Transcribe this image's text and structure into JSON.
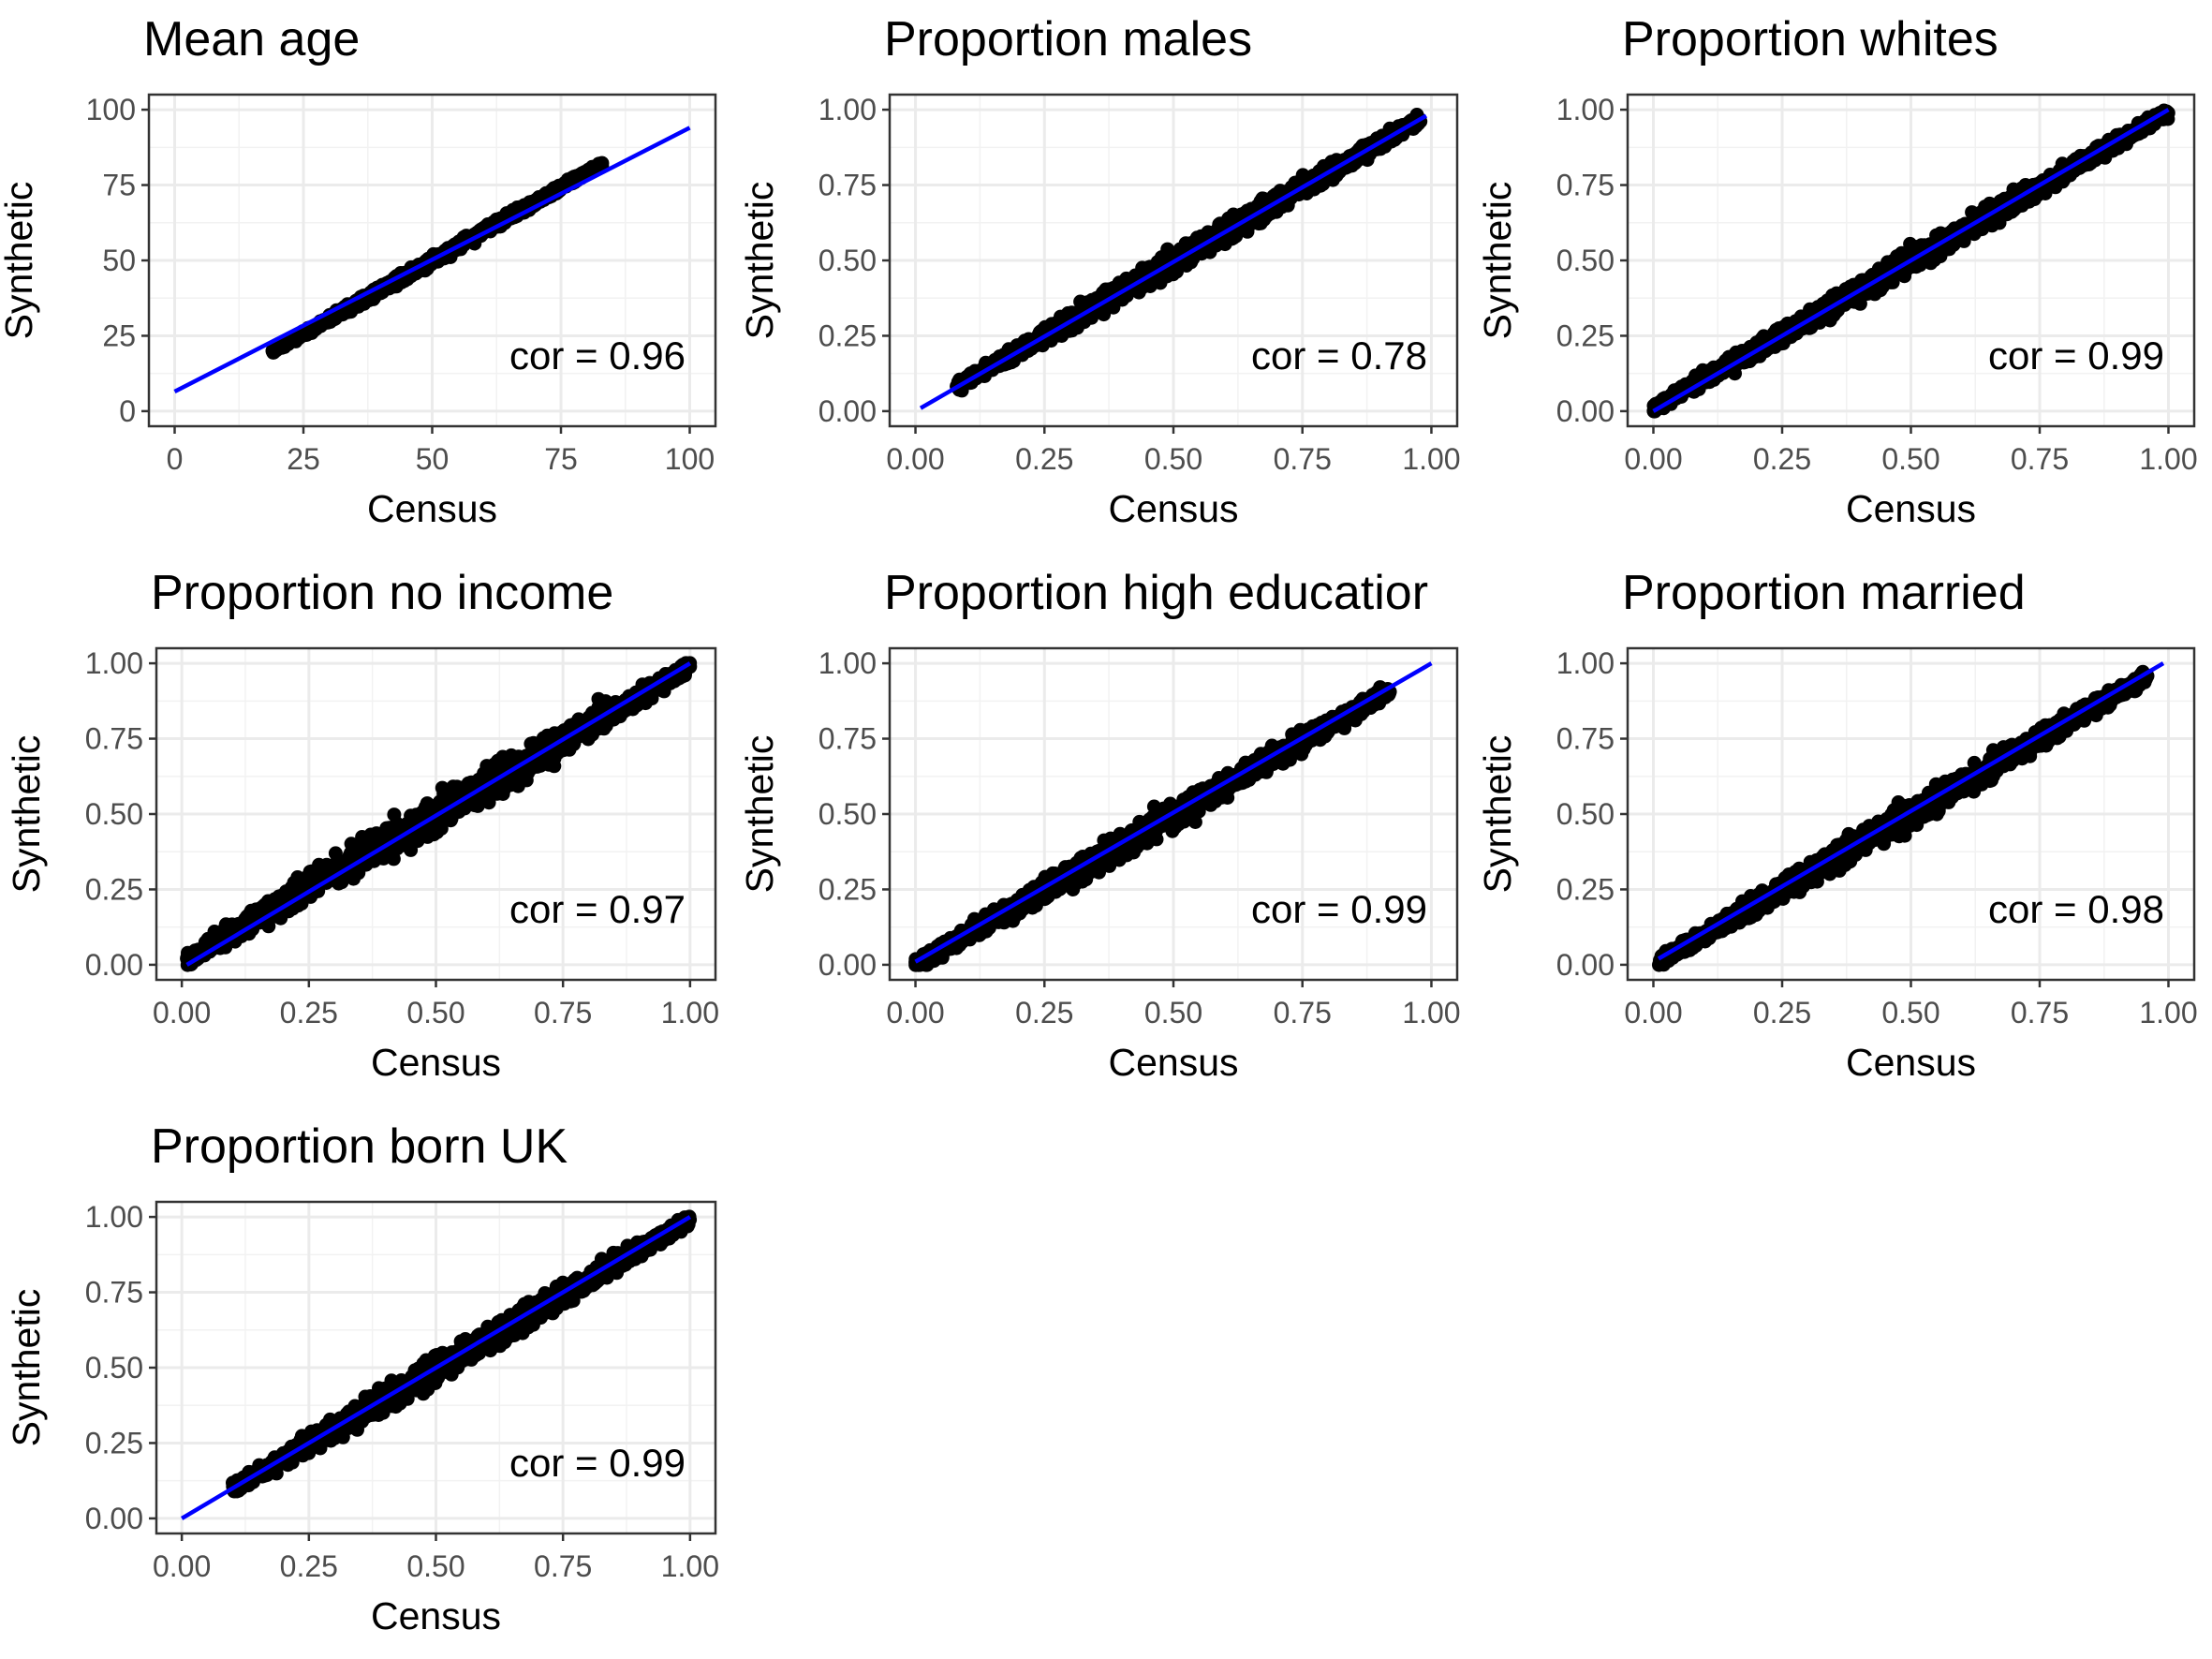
{
  "chart_data": [
    {
      "type": "scatter",
      "title": "Mean age",
      "xlabel": "Census",
      "ylabel": "Synthetic",
      "xlim": [
        -5,
        105
      ],
      "ylim": [
        -5,
        105
      ],
      "xticks": [
        0,
        25,
        50,
        75,
        100
      ],
      "yticks": [
        0,
        25,
        50,
        75,
        100
      ],
      "xtick_labels": [
        "0",
        "25",
        "50",
        "75",
        "100"
      ],
      "ytick_labels": [
        "0",
        "25",
        "50",
        "75",
        "100"
      ],
      "cloud": {
        "x_range": [
          19,
          83
        ],
        "slope": 0.97,
        "intercept": 1.5,
        "spread": 2.6
      },
      "fit_line": {
        "x": [
          0,
          100
        ],
        "y": [
          6.5,
          94
        ]
      },
      "annotation": "cor = 0.96",
      "point_color": "#000000",
      "line_color": "#0000ff",
      "grid": true
    },
    {
      "type": "scatter",
      "title": "Proportion males",
      "xlabel": "Census",
      "ylabel": "Synthetic",
      "xlim": [
        -0.05,
        1.05
      ],
      "ylim": [
        -0.05,
        1.05
      ],
      "xticks": [
        0,
        0.25,
        0.5,
        0.75,
        1
      ],
      "yticks": [
        0,
        0.25,
        0.5,
        0.75,
        1
      ],
      "xtick_labels": [
        "0.00",
        "0.25",
        "0.50",
        "0.75",
        "1.00"
      ],
      "ytick_labels": [
        "0.00",
        "0.25",
        "0.50",
        "0.75",
        "1.00"
      ],
      "cloud": {
        "x_range": [
          0.08,
          0.98
        ],
        "slope": 0.985,
        "intercept": 0.005,
        "spread": 0.06
      },
      "fit_line": {
        "x": [
          0.01,
          0.99
        ],
        "y": [
          0.01,
          0.98
        ]
      },
      "annotation": "cor = 0.78",
      "point_color": "#000000",
      "line_color": "#0000ff",
      "grid": true
    },
    {
      "type": "scatter",
      "title": "Proportion whites",
      "xlabel": "Census",
      "ylabel": "Synthetic",
      "xlim": [
        -0.05,
        1.05
      ],
      "ylim": [
        -0.05,
        1.05
      ],
      "xticks": [
        0,
        0.25,
        0.5,
        0.75,
        1
      ],
      "yticks": [
        0,
        0.25,
        0.5,
        0.75,
        1
      ],
      "xtick_labels": [
        "0.00",
        "0.25",
        "0.50",
        "0.75",
        "1.00"
      ],
      "ytick_labels": [
        "0.00",
        "0.25",
        "0.50",
        "0.75",
        "1.00"
      ],
      "cloud": {
        "x_range": [
          0.0,
          1.0
        ],
        "slope": 0.98,
        "intercept": 0.01,
        "spread": 0.06
      },
      "fit_line": {
        "x": [
          0.0,
          1.0
        ],
        "y": [
          0.0,
          1.0
        ]
      },
      "annotation": "cor = 0.99",
      "point_color": "#000000",
      "line_color": "#0000ff",
      "grid": true
    },
    {
      "type": "scatter",
      "title": "Proportion no income",
      "xlabel": "Census",
      "ylabel": "Synthetic",
      "xlim": [
        -0.05,
        1.05
      ],
      "ylim": [
        -0.05,
        1.05
      ],
      "xticks": [
        0,
        0.25,
        0.5,
        0.75,
        1
      ],
      "yticks": [
        0,
        0.25,
        0.5,
        0.75,
        1
      ],
      "xtick_labels": [
        "0.00",
        "0.25",
        "0.50",
        "0.75",
        "1.00"
      ],
      "ytick_labels": [
        "0.00",
        "0.25",
        "0.50",
        "0.75",
        "1.00"
      ],
      "cloud": {
        "x_range": [
          0.01,
          1.0
        ],
        "slope": 0.98,
        "intercept": 0.01,
        "spread": 0.09
      },
      "fit_line": {
        "x": [
          0.01,
          1.0
        ],
        "y": [
          0.0,
          1.0
        ]
      },
      "annotation": "cor = 0.97",
      "point_color": "#000000",
      "line_color": "#0000ff",
      "grid": true
    },
    {
      "type": "scatter",
      "title": "Proportion high educatior",
      "xlabel": "Census",
      "ylabel": "Synthetic",
      "xlim": [
        -0.05,
        1.05
      ],
      "ylim": [
        -0.05,
        1.05
      ],
      "xticks": [
        0,
        0.25,
        0.5,
        0.75,
        1
      ],
      "yticks": [
        0,
        0.25,
        0.5,
        0.75,
        1
      ],
      "xtick_labels": [
        "0.00",
        "0.25",
        "0.50",
        "0.75",
        "1.00"
      ],
      "ytick_labels": [
        "0.00",
        "0.25",
        "0.50",
        "0.75",
        "1.00"
      ],
      "cloud": {
        "x_range": [
          0.0,
          0.92
        ],
        "slope": 0.99,
        "intercept": 0.0,
        "spread": 0.07
      },
      "fit_line": {
        "x": [
          0.0,
          1.0
        ],
        "y": [
          0.01,
          1.0
        ]
      },
      "annotation": "cor = 0.99",
      "point_color": "#000000",
      "line_color": "#0000ff",
      "grid": true
    },
    {
      "type": "scatter",
      "title": "Proportion married",
      "xlabel": "Census",
      "ylabel": "Synthetic",
      "xlim": [
        -0.05,
        1.05
      ],
      "ylim": [
        -0.05,
        1.05
      ],
      "xticks": [
        0,
        0.25,
        0.5,
        0.75,
        1
      ],
      "yticks": [
        0,
        0.25,
        0.5,
        0.75,
        1
      ],
      "xtick_labels": [
        "0.00",
        "0.25",
        "0.50",
        "0.75",
        "1.00"
      ],
      "ytick_labels": [
        "0.00",
        "0.25",
        "0.50",
        "0.75",
        "1.00"
      ],
      "cloud": {
        "x_range": [
          0.01,
          0.96
        ],
        "slope": 1.0,
        "intercept": 0.0,
        "spread": 0.07
      },
      "fit_line": {
        "x": [
          0.01,
          0.99
        ],
        "y": [
          0.02,
          1.0
        ]
      },
      "annotation": "cor = 0.98",
      "point_color": "#000000",
      "line_color": "#0000ff",
      "grid": true
    },
    {
      "type": "scatter",
      "title": "Proportion born UK",
      "xlabel": "Census",
      "ylabel": "Synthetic",
      "xlim": [
        -0.05,
        1.05
      ],
      "ylim": [
        -0.05,
        1.05
      ],
      "xticks": [
        0,
        0.25,
        0.5,
        0.75,
        1
      ],
      "yticks": [
        0,
        0.25,
        0.5,
        0.75,
        1
      ],
      "xtick_labels": [
        "0.00",
        "0.25",
        "0.50",
        "0.75",
        "1.00"
      ],
      "ytick_labels": [
        "0.00",
        "0.25",
        "0.50",
        "0.75",
        "1.00"
      ],
      "cloud": {
        "x_range": [
          0.1,
          1.0
        ],
        "slope": 0.99,
        "intercept": 0.0,
        "spread": 0.07
      },
      "fit_line": {
        "x": [
          0.0,
          1.0
        ],
        "y": [
          0.0,
          1.0
        ]
      },
      "annotation": "cor = 0.99",
      "point_color": "#000000",
      "line_color": "#0000ff",
      "grid": true
    }
  ]
}
